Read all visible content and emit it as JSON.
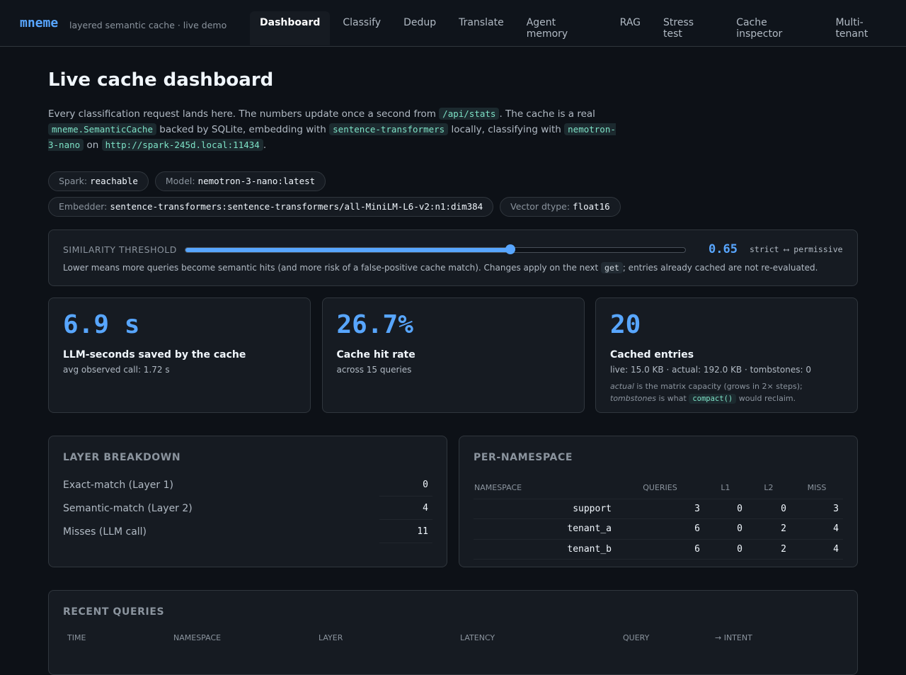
{
  "header": {
    "brand": "mneme",
    "tagline": "layered semantic cache · live demo",
    "nav": [
      "Dashboard",
      "Classify",
      "Dedup",
      "Translate",
      "Agent memory",
      "RAG",
      "Stress test",
      "Cache inspector",
      "Multi-tenant"
    ],
    "active_nav": 0
  },
  "title": "Live cache dashboard",
  "intro": [
    {
      "text": "Every classification request lands here. The numbers update once a second from "
    },
    {
      "code": "/api/stats"
    },
    {
      "text": ". The cache is a real "
    },
    {
      "code": "mneme.SemanticCache"
    },
    {
      "text": " backed by SQLite, embedding with "
    },
    {
      "code": "sentence-transformers"
    },
    {
      "text": " locally, classifying with "
    },
    {
      "code": "nemotron-3-nano"
    },
    {
      "text": " on "
    },
    {
      "code": "http://spark-245d.local:11434"
    },
    {
      "text": "."
    }
  ],
  "pills": [
    {
      "label": "Spark:",
      "value": "reachable"
    },
    {
      "label": "Model:",
      "value": "nemotron-3-nano:latest"
    },
    {
      "label": "Embedder:",
      "value": "sentence-transformers:sentence-transformers/all-MiniLM-L6-v2:n1:dim384"
    },
    {
      "label": "Vector dtype:",
      "value": "float16"
    }
  ],
  "threshold": {
    "label": "SIMILARITY THRESHOLD",
    "value": 0.65,
    "min": 0,
    "max": 1,
    "scale": "strict ⟷ permissive",
    "note": [
      {
        "text": "Lower means more queries become semantic hits (and more risk of a false-positive cache match). Changes apply on the next "
      },
      {
        "code": "get"
      },
      {
        "text": "; entries already cached are not re-evaluated."
      }
    ]
  },
  "cards": [
    {
      "value": "6.9 s",
      "label": "LLM-seconds saved by the cache",
      "sub": "avg observed call: 1.72 s"
    },
    {
      "value": "26.7%",
      "label": "Cache hit rate",
      "sub": "across 15 queries"
    },
    {
      "value": "20",
      "label": "Cached entries",
      "sub": "live: 15.0 KB · actual: 192.0 KB · tombstones: 0",
      "note": [
        {
          "em": "actual"
        },
        {
          "text": " is the matrix capacity (grows in 2× steps); "
        },
        {
          "em": "tombstones"
        },
        {
          "text": " is what "
        },
        {
          "code": "compact()"
        },
        {
          "text": " would reclaim."
        }
      ]
    }
  ],
  "layers": {
    "title": "LAYER BREAKDOWN",
    "rows": [
      {
        "label": "Exact-match (Layer 1)",
        "value": 0
      },
      {
        "label": "Semantic-match (Layer 2)",
        "value": 4
      },
      {
        "label": "Misses (LLM call)",
        "value": 11
      }
    ]
  },
  "namespaces": {
    "title": "PER-NAMESPACE",
    "columns": [
      "NAMESPACE",
      "QUERIES",
      "L1",
      "L2",
      "MISS"
    ],
    "rows": [
      [
        "support",
        3,
        0,
        0,
        3
      ],
      [
        "tenant_a",
        6,
        0,
        2,
        4
      ],
      [
        "tenant_b",
        6,
        0,
        2,
        4
      ]
    ]
  },
  "recent": {
    "title": "RECENT QUERIES",
    "columns": [
      "TIME",
      "NAMESPACE",
      "LAYER",
      "LATENCY",
      "QUERY",
      "→ INTENT"
    ]
  }
}
